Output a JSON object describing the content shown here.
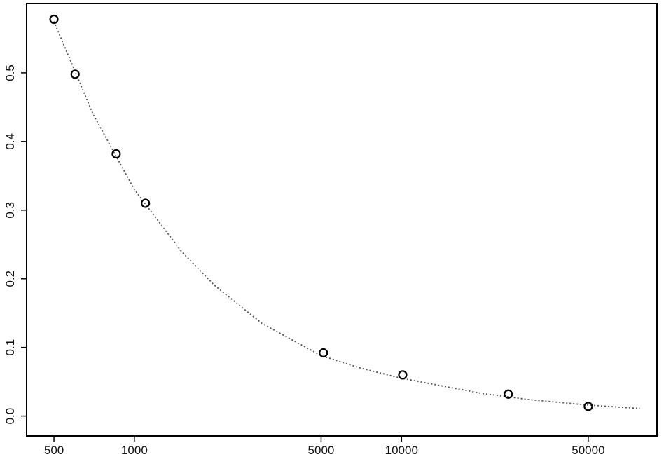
{
  "chart_data": {
    "type": "scatter",
    "log_x": true,
    "series": [
      {
        "type": "scatter",
        "color": "#000000",
        "x": [
          500,
          600,
          855,
          1100,
          5100,
          10100,
          25100,
          50000
        ],
        "values": [
          0.578,
          0.498,
          0.382,
          0.31,
          0.092,
          0.06,
          0.032,
          0.014
        ]
      },
      {
        "type": "line",
        "color": "#555555",
        "x": [
          500,
          700,
          1000,
          1500,
          2000,
          3000,
          5000,
          7000,
          10000,
          20000,
          30000,
          50000,
          78000
        ],
        "values": [
          0.575,
          0.44,
          0.33,
          0.24,
          0.19,
          0.135,
          0.088,
          0.07,
          0.055,
          0.033,
          0.024,
          0.016,
          0.011
        ]
      }
    ],
    "xlim": [
      395,
      90400
    ],
    "xticks": [
      500,
      1000,
      5000,
      10000,
      50000
    ],
    "ylim": [
      -0.029,
      0.601
    ],
    "yticks": [
      {
        "value": 0,
        "label": "0.0"
      },
      0.1,
      0.2,
      0.3,
      0.4,
      0.5
    ]
  }
}
